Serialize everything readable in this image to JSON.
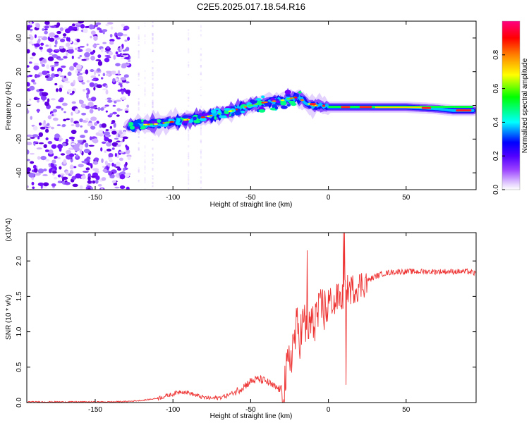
{
  "chart_data": [
    {
      "type": "heatmap",
      "title": "C2E5.2025.017.18.54.R16",
      "xlabel": "Height of straight line (km)",
      "ylabel": "Frequency (Hz)",
      "xlim": [
        -194,
        95
      ],
      "ylim": [
        -50,
        50
      ],
      "xticks": [
        -150,
        -100,
        -50,
        0,
        50
      ],
      "yticks": [
        -40,
        -20,
        0,
        20,
        40
      ],
      "colorbar": {
        "label": "Normalized spectral amplitude",
        "range": [
          0,
          1
        ],
        "ticks": [
          "0.0",
          "0.2",
          "0.4",
          "0.6",
          "0.8"
        ],
        "tick_values": [
          0,
          0.2,
          0.4,
          0.6,
          0.8
        ],
        "colors": [
          "#ffffff",
          "#c8a0ff",
          "#7000ff",
          "#0000ff",
          "#00ffff",
          "#00ff00",
          "#ffff00",
          "#ff8000",
          "#ff0000",
          "#ff0080"
        ]
      },
      "ridge": {
        "description_points_x": [
          -128,
          -110,
          -95,
          -80,
          -65,
          -50,
          -40,
          -30,
          -20,
          -15,
          -10,
          -5,
          0,
          10,
          30,
          50,
          70,
          80,
          93
        ],
        "description_points_y": [
          -12,
          -11,
          -9,
          -7,
          -4,
          0,
          2,
          3,
          5,
          2,
          0,
          0,
          -1,
          -1,
          -1,
          -1,
          -2,
          -3,
          -3
        ]
      }
    },
    {
      "type": "line",
      "xlabel": "Height of straight line (km)",
      "ylabel": "SNR (10 * v/v)",
      "y_scale_label": "(x10^4)",
      "xlim": [
        -194,
        95
      ],
      "ylim": [
        0,
        2.4
      ],
      "xticks": [
        -150,
        -100,
        -50,
        0,
        50
      ],
      "yticks": [
        0.0,
        0.5,
        1.0,
        1.5,
        2.0
      ],
      "ytick_labels": [
        "0.0",
        "0.5",
        "1.0",
        "1.5",
        "2.0"
      ],
      "series": [
        {
          "name": "SNR",
          "color": "#ee3333",
          "x": [
            -194,
            -180,
            -160,
            -140,
            -130,
            -120,
            -110,
            -100,
            -95,
            -90,
            -85,
            -80,
            -75,
            -70,
            -65,
            -60,
            -55,
            -50,
            -45,
            -40,
            -35,
            -30,
            -28,
            -26,
            -24,
            -22,
            -20,
            -18,
            -16,
            -14,
            -12,
            -10,
            -8,
            -6,
            -4,
            -2,
            0,
            2,
            4,
            6,
            8,
            10,
            12,
            15,
            20,
            25,
            30,
            35,
            40,
            45,
            50,
            60,
            70,
            80,
            90,
            95
          ],
          "y": [
            0.01,
            0.01,
            0.01,
            0.01,
            0.015,
            0.03,
            0.06,
            0.12,
            0.16,
            0.14,
            0.1,
            0.07,
            0.06,
            0.07,
            0.1,
            0.15,
            0.22,
            0.3,
            0.33,
            0.3,
            0.22,
            0.18,
            0.3,
            0.45,
            0.7,
            0.9,
            1.05,
            0.95,
            1.15,
            1.0,
            1.2,
            1.1,
            1.25,
            1.2,
            1.35,
            1.3,
            1.4,
            1.45,
            1.38,
            1.5,
            1.45,
            1.55,
            1.6,
            1.6,
            1.65,
            1.72,
            1.78,
            1.82,
            1.84,
            1.85,
            1.85,
            1.85,
            1.85,
            1.85,
            1.85,
            1.82
          ]
        }
      ]
    }
  ]
}
